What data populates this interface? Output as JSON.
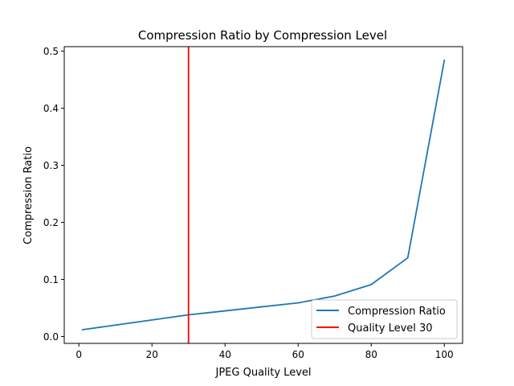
{
  "chart_data": {
    "type": "line",
    "title": "Compression Ratio by Compression Level",
    "xlabel": "JPEG Quality Level",
    "ylabel": "Compression Ratio",
    "xlim": [
      -4.0,
      105.0
    ],
    "ylim": [
      -0.012,
      0.508
    ],
    "xticks": [
      0,
      20,
      40,
      60,
      80,
      100
    ],
    "yticks": [
      0.0,
      0.1,
      0.2,
      0.3,
      0.4,
      0.5
    ],
    "grid": false,
    "legend_position": "lower-right",
    "series": [
      {
        "name": "Compression Ratio",
        "color": "#1f77b4",
        "x": [
          1,
          10,
          20,
          30,
          40,
          50,
          60,
          70,
          80,
          90,
          100
        ],
        "y": [
          0.012,
          0.02,
          0.029,
          0.038,
          0.045,
          0.052,
          0.059,
          0.071,
          0.091,
          0.138,
          0.484
        ]
      }
    ],
    "vlines": [
      {
        "name": "Quality Level 30",
        "x": 30,
        "color": "#ff0000"
      }
    ]
  }
}
